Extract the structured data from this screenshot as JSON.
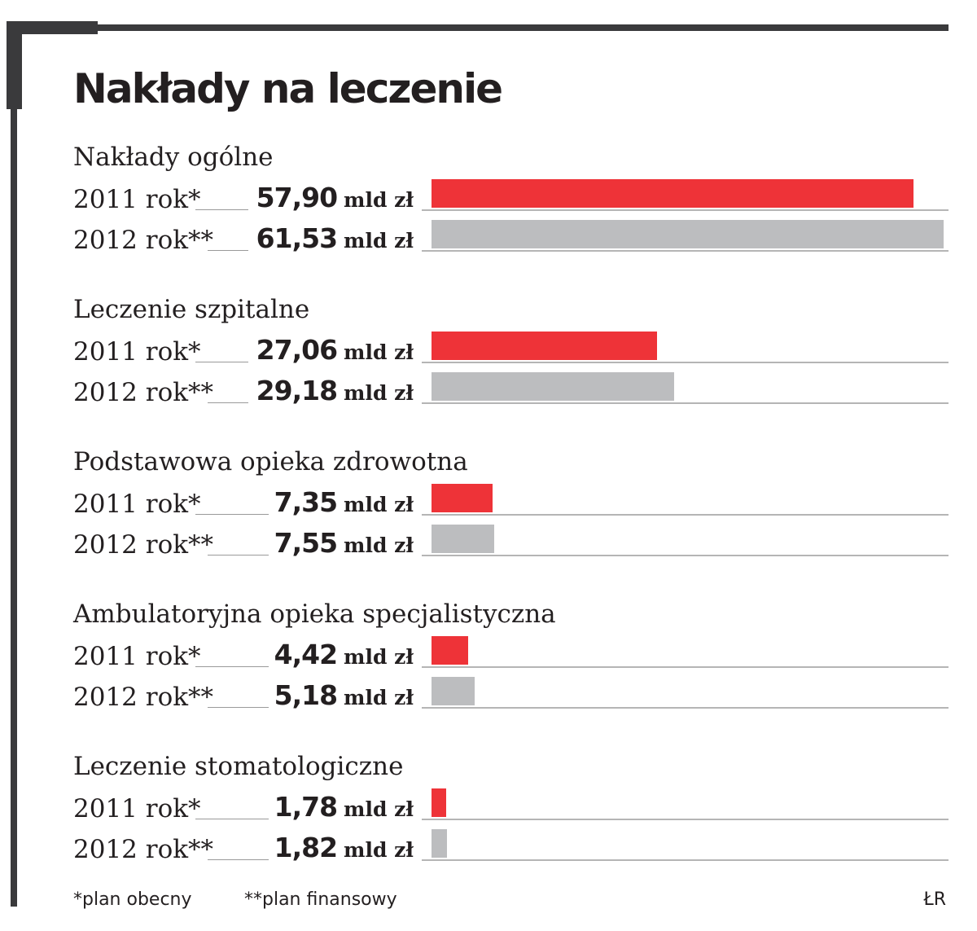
{
  "title": "Nakłady na leczenie",
  "unit": "mld zł",
  "footnotes": {
    "first": "*plan obecny",
    "second": "**plan finansowy"
  },
  "source": "ŁR",
  "colors": {
    "year2011": "#ee3338",
    "year2012": "#bcbdbf",
    "frame": "#3a3a3c"
  },
  "chart_data": {
    "type": "bar",
    "orientation": "horizontal",
    "title": "Nakłady na leczenie",
    "categories": [
      "Nakłady ogólne",
      "Leczenie szpitalne",
      "Podstawowa opieka zdrowotna",
      "Ambulatoryjna opieka specjalistyczna",
      "Leczenie stomatologiczne"
    ],
    "series": [
      {
        "name": "2011 rok*",
        "value_labels": [
          "57,90",
          "27,06",
          "7,35",
          "4,42",
          "1,78"
        ],
        "values": [
          57.9,
          27.06,
          7.35,
          4.42,
          1.78
        ]
      },
      {
        "name": "2012 rok**",
        "value_labels": [
          "61,53",
          "29,18",
          "7,55",
          "5,18",
          "1,82"
        ],
        "values": [
          61.53,
          29.18,
          7.55,
          5.18,
          1.82
        ]
      }
    ],
    "xlim": [
      0,
      61.53
    ],
    "grid": false,
    "legend": "none"
  }
}
